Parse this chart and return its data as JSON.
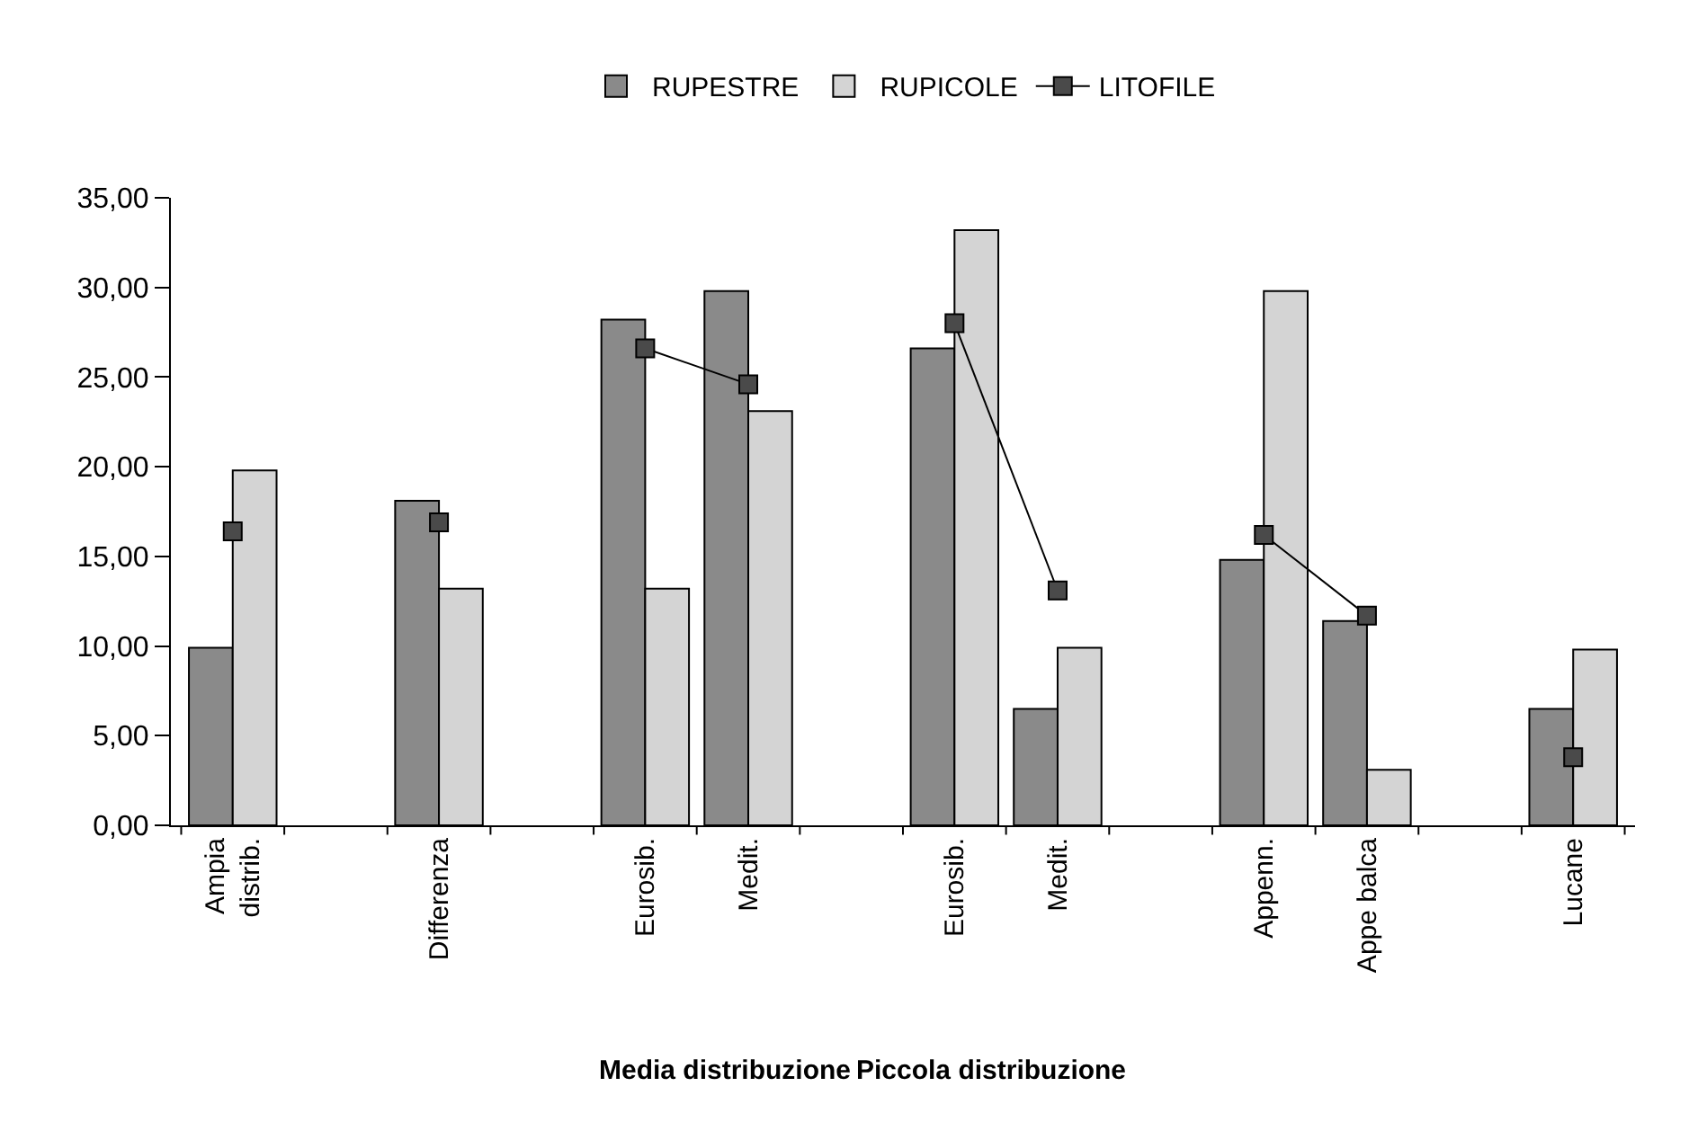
{
  "chart_data": {
    "type": "bar",
    "categories": [
      "Ampia\ndistrib.",
      null,
      "Differenza",
      null,
      "Eurosib.",
      "Medit.",
      null,
      "Eurosib.",
      "Medit.",
      null,
      "Appenn.",
      "Appe balca",
      null,
      "Lucane"
    ],
    "series": [
      {
        "name": "RUPESTRE",
        "color": "#8a8a8a",
        "values": [
          9.9,
          null,
          18.1,
          null,
          28.2,
          29.8,
          null,
          26.6,
          6.5,
          null,
          14.8,
          11.4,
          null,
          6.5
        ]
      },
      {
        "name": "RUPICOLE",
        "color": "#d4d4d4",
        "values": [
          19.8,
          null,
          13.2,
          null,
          13.2,
          23.1,
          null,
          33.2,
          9.9,
          null,
          29.8,
          3.1,
          null,
          9.8
        ]
      },
      {
        "name": "LITOFILE",
        "type": "line",
        "color": "#4a4a4a",
        "marker": "square",
        "values": [
          16.4,
          null,
          16.9,
          null,
          26.6,
          24.6,
          null,
          28.0,
          13.1,
          null,
          16.2,
          11.7,
          null,
          3.8
        ]
      }
    ],
    "ylim": [
      0,
      35
    ],
    "yticks": [
      {
        "value": 0,
        "label": "0,00"
      },
      {
        "value": 5,
        "label": "5,00"
      },
      {
        "value": 10,
        "label": "10,00"
      },
      {
        "value": 15,
        "label": "15,00"
      },
      {
        "value": 20,
        "label": "20,00"
      },
      {
        "value": 25,
        "label": "25,00"
      },
      {
        "value": 30,
        "label": "30,00"
      },
      {
        "value": 35,
        "label": "35,00"
      }
    ],
    "legend": "top",
    "annotations": [
      "Media distribuzione",
      "Piccola distribuzione"
    ]
  }
}
